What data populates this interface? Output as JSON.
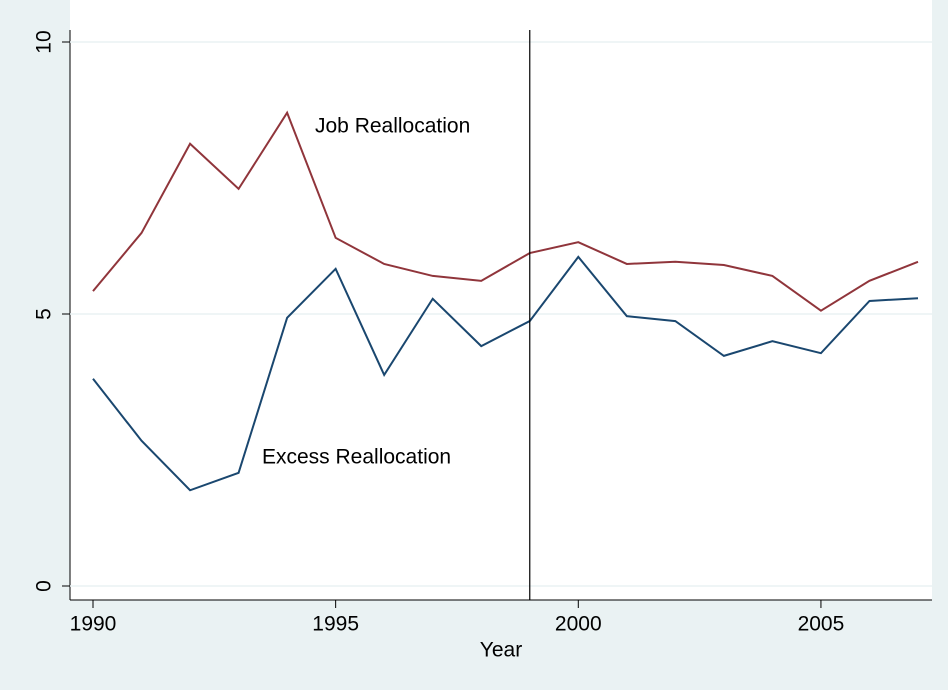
{
  "chart_data": {
    "type": "line",
    "x_label": "Year",
    "x": [
      1990,
      1991,
      1992,
      1993,
      1994,
      1995,
      1996,
      1997,
      1998,
      1999,
      2000,
      2001,
      2002,
      2003,
      2004,
      2005,
      2006,
      2007
    ],
    "series": [
      {
        "name": "Job Reallocation",
        "color": "#90353b",
        "values": [
          5.42,
          6.49,
          8.13,
          7.3,
          8.7,
          6.4,
          5.92,
          5.7,
          5.61,
          6.12,
          6.32,
          5.92,
          5.96,
          5.9,
          5.7,
          5.06,
          5.61,
          5.96
        ]
      },
      {
        "name": "Excess Reallocation",
        "color": "#1a476f",
        "values": [
          3.81,
          2.67,
          1.76,
          2.08,
          4.93,
          5.83,
          3.88,
          5.28,
          4.41,
          4.87,
          6.05,
          4.96,
          4.87,
          4.23,
          4.5,
          4.28,
          5.24,
          5.29
        ]
      }
    ],
    "xlim": [
      1990,
      2007
    ],
    "xticks": [
      1990,
      1995,
      2000,
      2005
    ],
    "ylim": [
      0,
      10
    ],
    "yticks": [
      0,
      5,
      10
    ],
    "vline": 1999,
    "grid": true
  }
}
